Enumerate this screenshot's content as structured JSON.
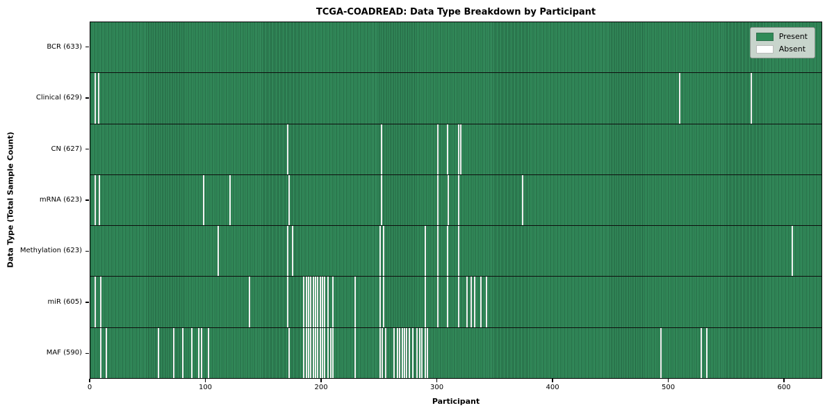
{
  "chart_data": {
    "type": "heatmap",
    "title": "TCGA-COADREAD: Data Type Breakdown by Participant",
    "xlabel": "Participant",
    "ylabel": "Data Type (Total Sample Count)",
    "x_range": [
      0,
      633
    ],
    "x_ticks": [
      0,
      100,
      200,
      300,
      400,
      500,
      600
    ],
    "n_participants": 633,
    "grid": false,
    "legend_position": "upper right",
    "colors": {
      "present": "#2e8b57",
      "absent": "#ffffff"
    },
    "legend": [
      {
        "label": "Present",
        "color": "#2e8b57"
      },
      {
        "label": "Absent",
        "color": "#ffffff"
      }
    ],
    "rows": [
      {
        "label": "BCR (633)",
        "present_count": 633,
        "absent_participants": []
      },
      {
        "label": "Clinical (629)",
        "present_count": 629,
        "absent_participants": [
          4,
          7,
          510,
          572
        ]
      },
      {
        "label": "CN (627)",
        "present_count": 627,
        "absent_participants": [
          171,
          252,
          301,
          309,
          319,
          321
        ]
      },
      {
        "label": "mRNA (623)",
        "present_count": 623,
        "absent_participants": [
          4,
          8,
          98,
          121,
          172,
          252,
          301,
          310,
          319,
          374
        ]
      },
      {
        "label": "Methylation (623)",
        "present_count": 623,
        "absent_participants": [
          111,
          171,
          175,
          251,
          254,
          290,
          301,
          309,
          319,
          608
        ]
      },
      {
        "label": "miR (605)",
        "present_count": 605,
        "absent_participants": [
          4,
          9,
          138,
          171,
          185,
          187,
          189,
          191,
          193,
          195,
          197,
          199,
          201,
          203,
          206,
          210,
          229,
          251,
          254,
          290,
          301,
          309,
          319,
          326,
          330,
          333,
          338,
          343
        ]
      },
      {
        "label": "MAF (590)",
        "present_count": 590,
        "absent_participants": [
          9,
          14,
          59,
          72,
          80,
          88,
          94,
          96,
          102,
          172,
          185,
          187,
          189,
          191,
          193,
          195,
          197,
          199,
          201,
          203,
          206,
          208,
          210,
          229,
          251,
          253,
          256,
          263,
          266,
          268,
          270,
          272,
          274,
          276,
          279,
          283,
          285,
          287,
          290,
          292,
          494,
          529,
          534
        ]
      }
    ]
  }
}
